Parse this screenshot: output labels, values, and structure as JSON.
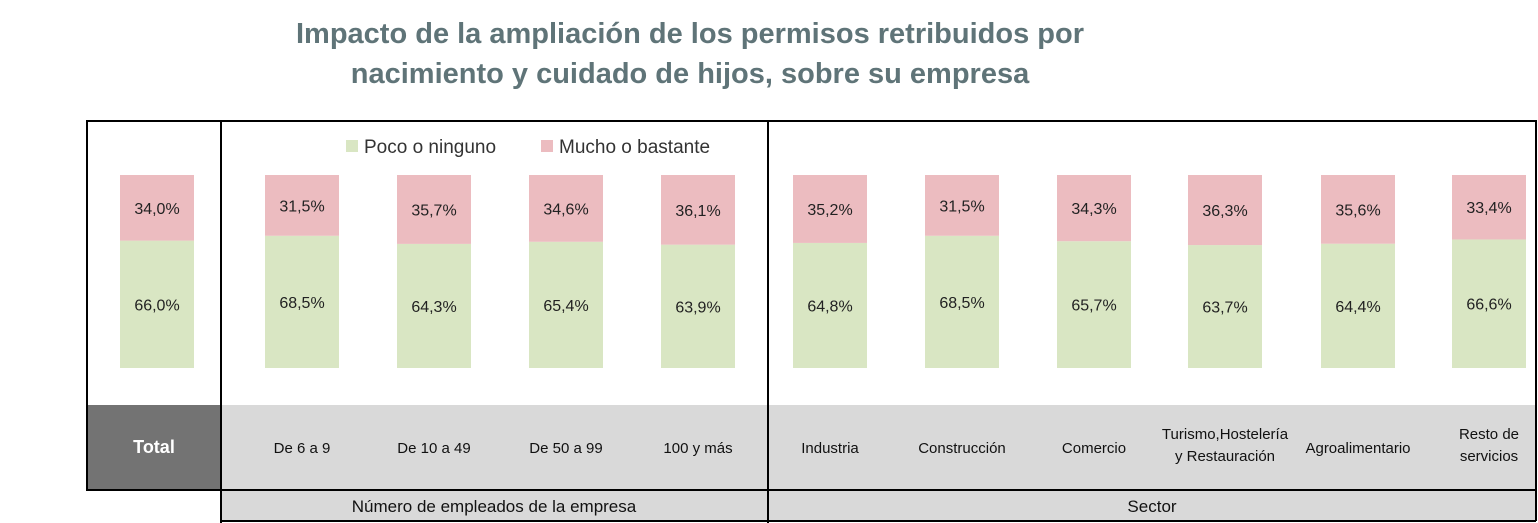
{
  "title_lines": [
    "Impacto de la ampliación de los permisos retribuidos por",
    "nacimiento y cuidado de hijos, sobre su empresa"
  ],
  "colors": {
    "poco": "#d9e6c3",
    "mucho": "#ecbcc0",
    "band": "#d9d9d9",
    "total_band": "#737373",
    "title": "#5f7478"
  },
  "chart_data": {
    "type": "bar",
    "stacked": true,
    "percent": true,
    "title": "Impacto de la ampliación de los permisos retribuidos por nacimiento y cuidado de hijos, sobre su empresa",
    "legend_position": "top",
    "categories": [
      "Total",
      "De 6 a 9",
      "De 10 a 49",
      "De 50 a 99",
      "100 y más",
      "Industria",
      "Construcción",
      "Comercio",
      "Turismo,Hostelería y Restauración",
      "Agroalimentario",
      "Resto de servicios"
    ],
    "category_lines": [
      [
        "Total"
      ],
      [
        "De 6 a 9"
      ],
      [
        "De 10 a 49"
      ],
      [
        "De 50 a 99"
      ],
      [
        "100 y más"
      ],
      [
        "Industria"
      ],
      [
        "Construcción"
      ],
      [
        "Comercio"
      ],
      [
        "Turismo,Hostelería",
        "y Restauración"
      ],
      [
        "Agroalimentario"
      ],
      [
        "Resto de",
        "servicios"
      ]
    ],
    "groups": [
      {
        "label": "Número de empleados de la empresa",
        "categories": [
          "De 6 a 9",
          "De 10 a 49",
          "De 50 a 99",
          "100 y más"
        ]
      },
      {
        "label": "Sector",
        "categories": [
          "Industria",
          "Construcción",
          "Comercio",
          "Turismo,Hostelería y Restauración",
          "Agroalimentario",
          "Resto de servicios"
        ]
      }
    ],
    "series": [
      {
        "name": "Poco o ninguno",
        "values": [
          66.0,
          68.5,
          64.3,
          65.4,
          63.9,
          64.8,
          68.5,
          65.7,
          63.7,
          64.4,
          66.6
        ],
        "labels": [
          "66,0%",
          "68,5%",
          "64,3%",
          "65,4%",
          "63,9%",
          "64,8%",
          "68,5%",
          "65,7%",
          "63,7%",
          "64,4%",
          "66,6%"
        ]
      },
      {
        "name": "Mucho o bastante",
        "values": [
          34.0,
          31.5,
          35.7,
          34.6,
          36.1,
          35.2,
          31.5,
          34.3,
          36.3,
          35.6,
          33.4
        ],
        "labels": [
          "34,0%",
          "31,5%",
          "35,7%",
          "34,6%",
          "36,1%",
          "35,2%",
          "31,5%",
          "34,3%",
          "36,3%",
          "35,6%",
          "33,4%"
        ]
      }
    ],
    "ylim": [
      0,
      100
    ]
  }
}
